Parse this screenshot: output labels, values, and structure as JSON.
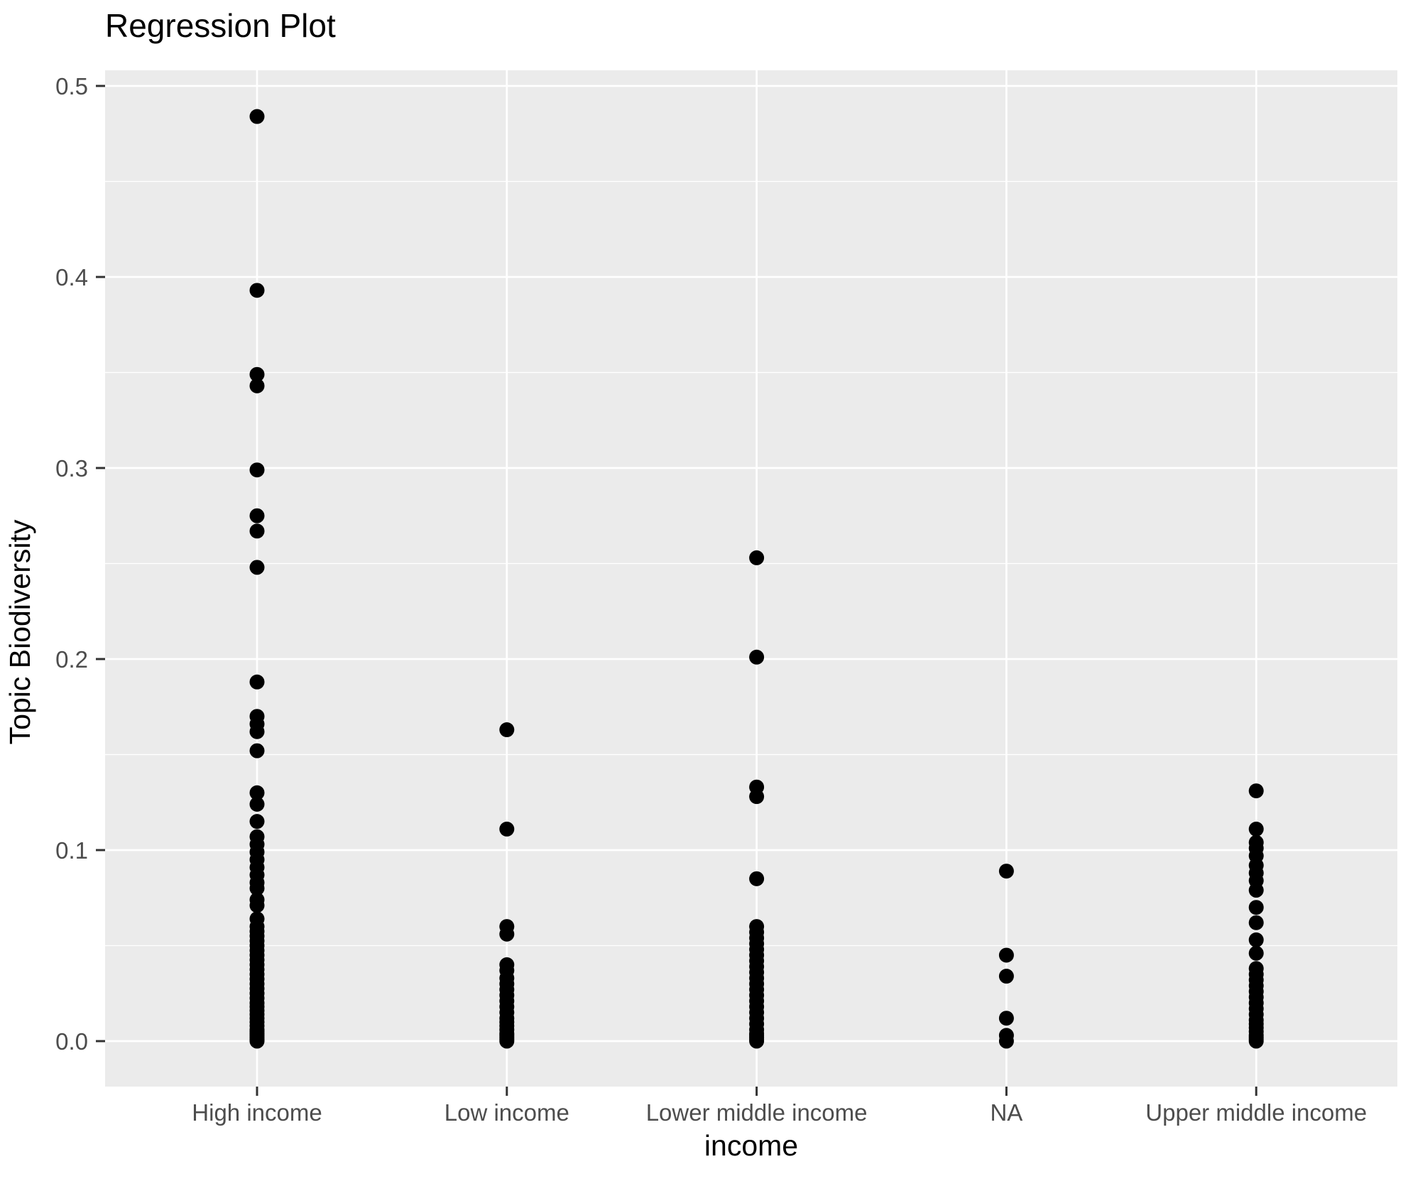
{
  "title": "Regression Plot",
  "x_axis": {
    "label": "income",
    "categories": [
      "High income",
      "Low income",
      "Lower middle income",
      "NA",
      "Upper middle income"
    ]
  },
  "y_axis": {
    "label": "Topic Biodiversity",
    "ticks": [
      "0.0",
      "0.1",
      "0.2",
      "0.3",
      "0.4",
      "0.5"
    ]
  },
  "colors": {
    "panel_background": "#ebebeb",
    "grid_line": "#ffffff",
    "axis_text": "#4d4d4d",
    "tick_mark": "#333333",
    "point": "#000000",
    "title_text": "#000000"
  },
  "chart_data": {
    "type": "scatter",
    "title": "Regression Plot",
    "xlabel": "income",
    "ylabel": "Topic Biodiversity",
    "categories": [
      "High income",
      "Low income",
      "Lower middle income",
      "NA",
      "Upper middle income"
    ],
    "ylim": [
      -0.024,
      0.508
    ],
    "y_major_ticks": [
      0.0,
      0.1,
      0.2,
      0.3,
      0.4,
      0.5
    ],
    "y_minor_ticks": [
      0.05,
      0.15,
      0.25,
      0.35,
      0.45
    ],
    "grid": true,
    "legend": false,
    "series": [
      {
        "name": "High income",
        "values": [
          0.484,
          0.393,
          0.349,
          0.343,
          0.299,
          0.275,
          0.267,
          0.248,
          0.188,
          0.17,
          0.166,
          0.162,
          0.152,
          0.13,
          0.124,
          0.115,
          0.107,
          0.103,
          0.099,
          0.095,
          0.091,
          0.087,
          0.083,
          0.08,
          0.074,
          0.071,
          0.064,
          0.06,
          0.0575,
          0.055,
          0.0525,
          0.05,
          0.0475,
          0.045,
          0.0425,
          0.04,
          0.0375,
          0.035,
          0.0325,
          0.03,
          0.0275,
          0.025,
          0.0225,
          0.02,
          0.018,
          0.016,
          0.014,
          0.012,
          0.01,
          0.008,
          0.006,
          0.005,
          0.004,
          0.003,
          0.002,
          0.001,
          0.0005,
          0.0
        ]
      },
      {
        "name": "Low income",
        "values": [
          0.163,
          0.111,
          0.06,
          0.056,
          0.04,
          0.037,
          0.033,
          0.03,
          0.027,
          0.024,
          0.021,
          0.018,
          0.015,
          0.012,
          0.01,
          0.008,
          0.006,
          0.004,
          0.003,
          0.002,
          0.001,
          0.0
        ]
      },
      {
        "name": "Lower middle income",
        "values": [
          0.253,
          0.201,
          0.133,
          0.128,
          0.085,
          0.06,
          0.057,
          0.054,
          0.051,
          0.048,
          0.045,
          0.042,
          0.039,
          0.036,
          0.033,
          0.03,
          0.027,
          0.024,
          0.021,
          0.018,
          0.015,
          0.012,
          0.009,
          0.006,
          0.004,
          0.003,
          0.002,
          0.001,
          0.0
        ]
      },
      {
        "name": "NA",
        "values": [
          0.089,
          0.045,
          0.034,
          0.012,
          0.003,
          0.0
        ]
      },
      {
        "name": "Upper middle income",
        "values": [
          0.131,
          0.111,
          0.104,
          0.101,
          0.097,
          0.092,
          0.088,
          0.084,
          0.079,
          0.07,
          0.062,
          0.053,
          0.046,
          0.038,
          0.035,
          0.032,
          0.029,
          0.026,
          0.023,
          0.02,
          0.017,
          0.014,
          0.011,
          0.009,
          0.007,
          0.005,
          0.003,
          0.002,
          0.001,
          0.0
        ]
      }
    ]
  }
}
